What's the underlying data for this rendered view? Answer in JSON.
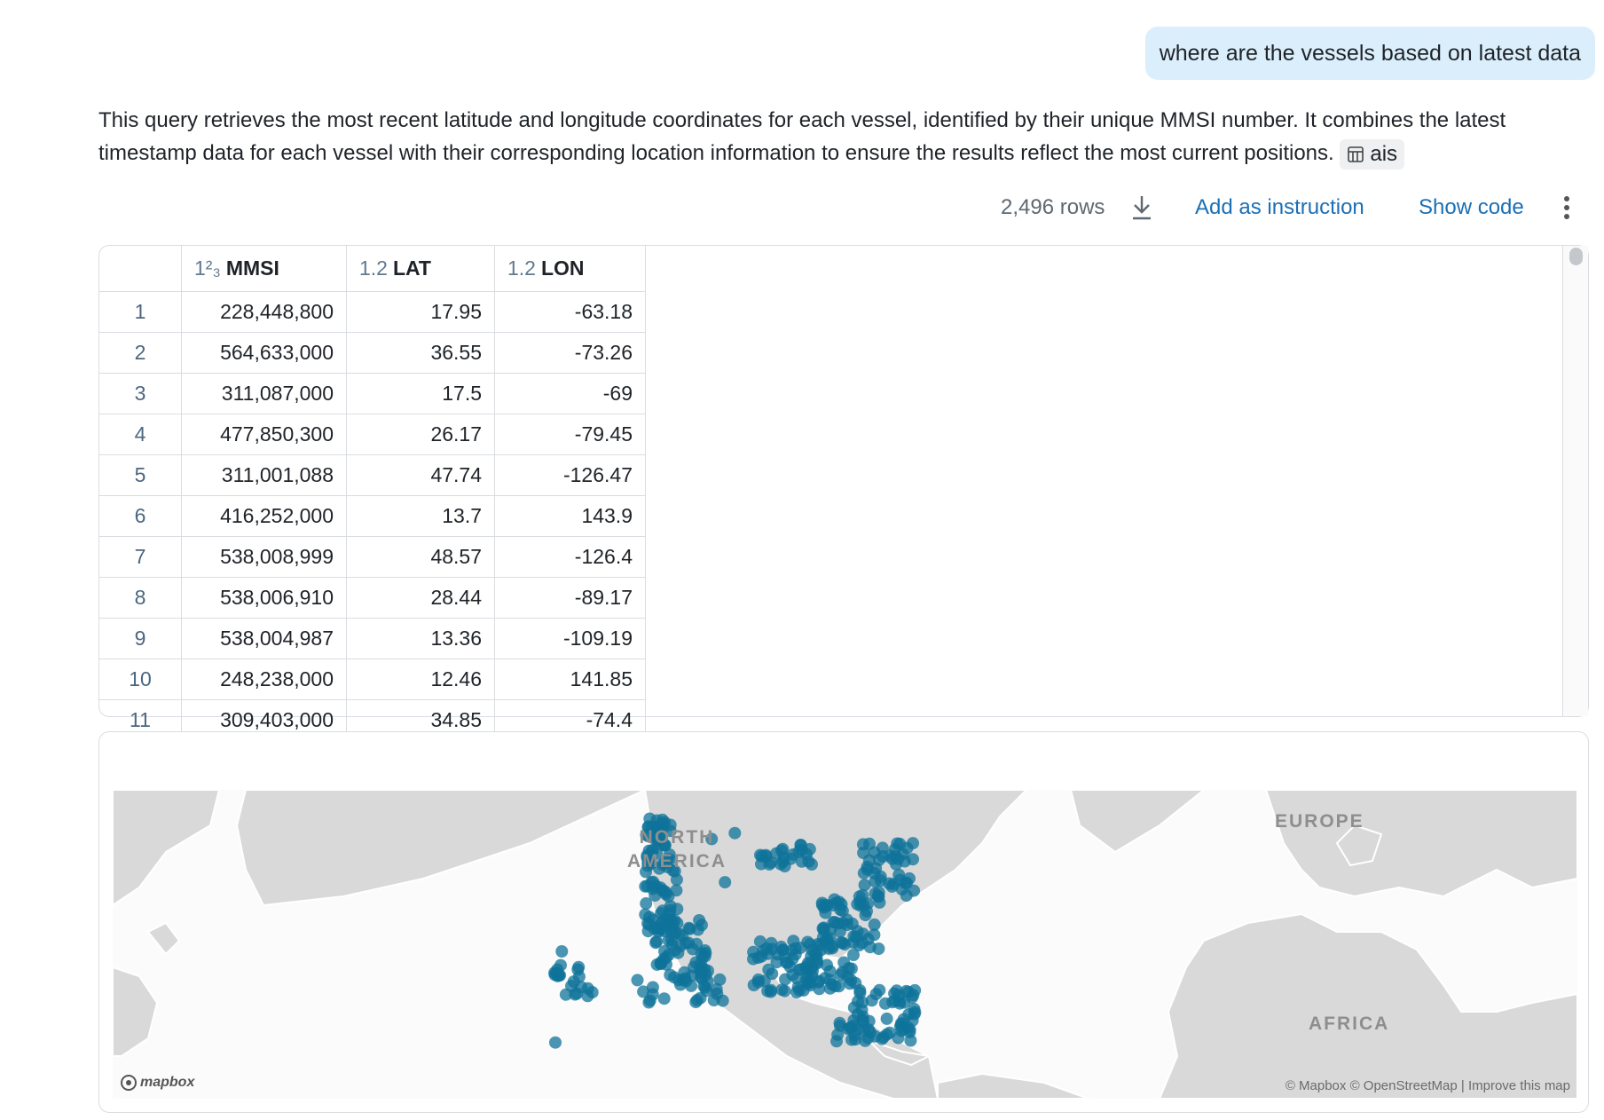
{
  "user_message": "where are the vessels based on latest data",
  "answer": {
    "text": "This query retrieves the most recent latitude and longitude coordinates for each vessel, identified by their unique MMSI number. It combines the latest timestamp data for each vessel with their corresponding location information to ensure the results reflect the most current positions.",
    "table_chip": "ais",
    "table_chip_icon": "table-icon"
  },
  "toolbar": {
    "rows": "2,496 rows",
    "download_icon": "download-icon",
    "add_instruction": "Add as instruction",
    "show_code": "Show code",
    "more_icon": "more-vertical-icon"
  },
  "table": {
    "columns": [
      {
        "type": "1²₃",
        "name": "MMSI"
      },
      {
        "type": "1.2",
        "name": "LAT"
      },
      {
        "type": "1.2",
        "name": "LON"
      }
    ],
    "rows": [
      {
        "idx": "1",
        "mmsi": "228,448,800",
        "lat": "17.95",
        "lon": "-63.18"
      },
      {
        "idx": "2",
        "mmsi": "564,633,000",
        "lat": "36.55",
        "lon": "-73.26"
      },
      {
        "idx": "3",
        "mmsi": "311,087,000",
        "lat": "17.5",
        "lon": "-69"
      },
      {
        "idx": "4",
        "mmsi": "477,850,300",
        "lat": "26.17",
        "lon": "-79.45"
      },
      {
        "idx": "5",
        "mmsi": "311,001,088",
        "lat": "47.74",
        "lon": "-126.47"
      },
      {
        "idx": "6",
        "mmsi": "416,252,000",
        "lat": "13.7",
        "lon": "143.9"
      },
      {
        "idx": "7",
        "mmsi": "538,008,999",
        "lat": "48.57",
        "lon": "-126.4"
      },
      {
        "idx": "8",
        "mmsi": "538,006,910",
        "lat": "28.44",
        "lon": "-89.17"
      },
      {
        "idx": "9",
        "mmsi": "538,004,987",
        "lat": "13.36",
        "lon": "-109.19"
      },
      {
        "idx": "10",
        "mmsi": "248,238,000",
        "lat": "12.46",
        "lon": "141.85"
      },
      {
        "idx": "11",
        "mmsi": "309,403,000",
        "lat": "34.85",
        "lon": "-74.4"
      }
    ]
  },
  "map": {
    "labels": {
      "north_america": "NORTH\nAMERICA",
      "europe": "EUROPE",
      "africa": "AFRICA"
    },
    "attribution": {
      "mapbox": "© Mapbox",
      "osm": "© OpenStreetMap",
      "separator": "|",
      "improve": "Improve this map"
    },
    "logo": "mapbox",
    "point_color": "#0f7399",
    "land_color": "#d9d9d9"
  }
}
